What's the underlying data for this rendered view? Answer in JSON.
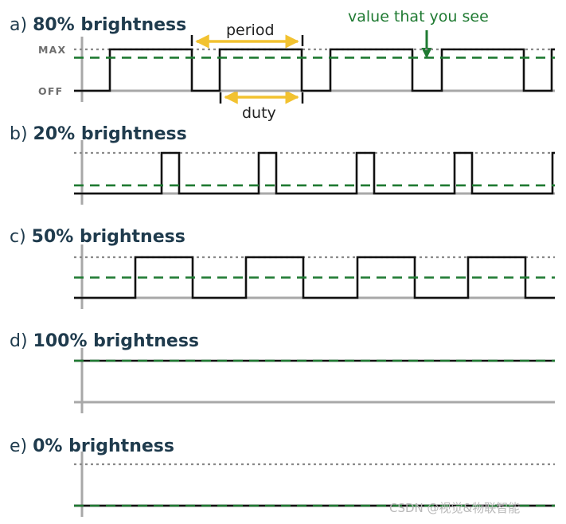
{
  "colors": {
    "signal": "#111111",
    "average": "#1f7a32",
    "max_dotted": "#8a8a8a",
    "axis": "#a8a8a8",
    "arrow_yellow": "#f2c230",
    "title": "#1f3b4d"
  },
  "labels": {
    "max": "MAX",
    "off": "OFF",
    "period": "period",
    "duty": "duty",
    "value_note": "value that you see",
    "watermark": "CSDN @视觉&物联智能"
  },
  "panels": [
    {
      "prefix": "a) ",
      "title": "80% brightness",
      "duty": 0.8
    },
    {
      "prefix": "b) ",
      "title": "20% brightness",
      "duty": 0.2
    },
    {
      "prefix": "c) ",
      "title": "50% brightness",
      "duty": 0.5
    },
    {
      "prefix": "d) ",
      "title": "100% brightness",
      "duty": 1.0
    },
    {
      "prefix": "e) ",
      "title": "0% brightness",
      "duty": 0.0
    }
  ]
}
